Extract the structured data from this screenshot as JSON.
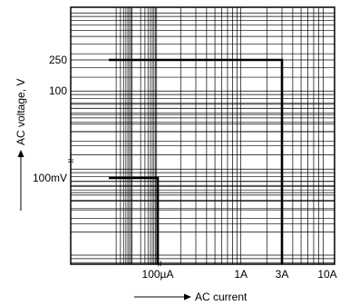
{
  "chart_data": {
    "type": "line",
    "title": "",
    "xlabel": "AC current",
    "ylabel": "AC voltage, V",
    "x_scale": "log",
    "y_scale": "log",
    "grid": true,
    "x_ticks": [
      {
        "label": "100µA",
        "value": 0.0001
      },
      {
        "label": "1A",
        "value": 1
      },
      {
        "label": "3A",
        "value": 3
      },
      {
        "label": "10A",
        "value": 10
      }
    ],
    "y_ticks": [
      {
        "label": "250",
        "value": 250
      },
      {
        "label": "100",
        "value": 100
      },
      {
        "label": "100mV",
        "value": 0.1
      }
    ],
    "series": [
      {
        "points": [
          [
            1e-06,
            250
          ],
          [
            3,
            250
          ],
          [
            3,
            0.001
          ]
        ]
      },
      {
        "points": [
          [
            1e-06,
            0.1
          ],
          [
            0.0001,
            0.1
          ],
          [
            0.0001,
            0.001
          ]
        ]
      }
    ],
    "axis_breaks": {
      "x_after": "100µA",
      "y_below": "100"
    }
  }
}
